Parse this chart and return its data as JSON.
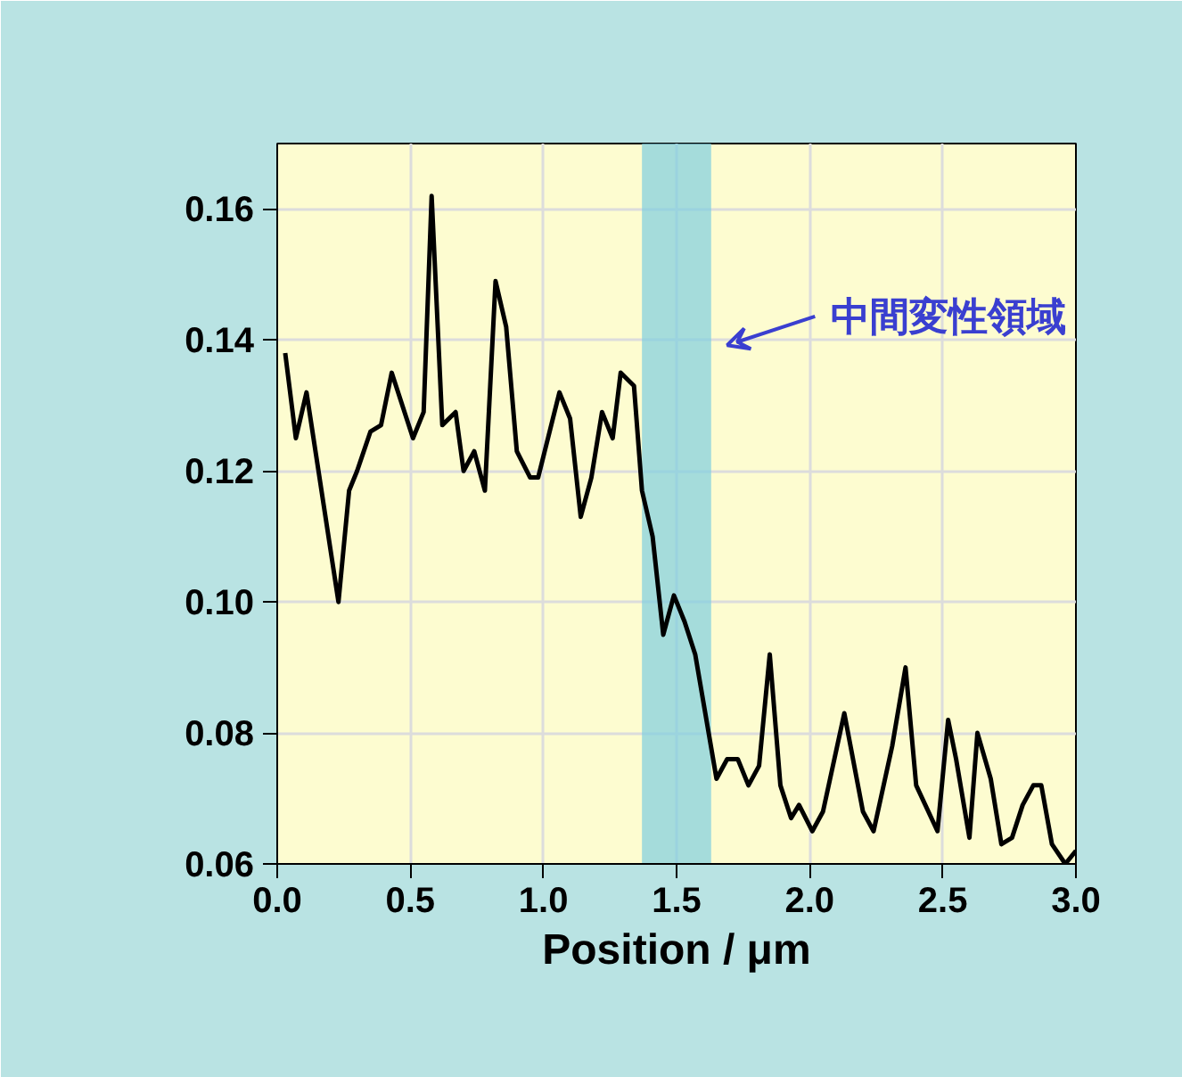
{
  "chart_data": {
    "type": "line",
    "xlabel": "Position / μm",
    "xlim": [
      0,
      3.0
    ],
    "ylim": [
      0.06,
      0.17
    ],
    "xticks": [
      {
        "value": 0,
        "label": "0.0"
      },
      {
        "value": 0.5,
        "label": "0.5"
      },
      {
        "value": 1.0,
        "label": "1.0"
      },
      {
        "value": 1.5,
        "label": "1.5"
      },
      {
        "value": 2.0,
        "label": "2.0"
      },
      {
        "value": 2.5,
        "label": "2.5"
      },
      {
        "value": 3.0,
        "label": "3.0"
      }
    ],
    "yticks": [
      {
        "value": 0.06,
        "label": "0.06"
      },
      {
        "value": 0.08,
        "label": "0.08"
      },
      {
        "value": 0.1,
        "label": "0.10"
      },
      {
        "value": 0.12,
        "label": "0.12"
      },
      {
        "value": 0.14,
        "label": "0.14"
      },
      {
        "value": 0.16,
        "label": "0.16"
      }
    ],
    "grid": true,
    "line_style": "solid",
    "bands": [
      {
        "axis": "x",
        "from": 1.37,
        "to": 1.63,
        "color": "#7fcfe0",
        "label": "中間変性領域"
      }
    ],
    "series": [
      {
        "color": "#000000",
        "x": [
          0.03,
          0.07,
          0.11,
          0.23,
          0.27,
          0.3,
          0.35,
          0.39,
          0.43,
          0.51,
          0.55,
          0.58,
          0.62,
          0.67,
          0.7,
          0.74,
          0.78,
          0.82,
          0.86,
          0.9,
          0.95,
          0.98,
          1.06,
          1.1,
          1.14,
          1.18,
          1.22,
          1.26,
          1.29,
          1.34,
          1.37,
          1.41,
          1.45,
          1.49,
          1.53,
          1.57,
          1.65,
          1.69,
          1.73,
          1.77,
          1.81,
          1.85,
          1.89,
          1.93,
          1.96,
          2.01,
          2.05,
          2.13,
          2.2,
          2.24,
          2.31,
          2.36,
          2.4,
          2.48,
          2.52,
          2.55,
          2.6,
          2.63,
          2.68,
          2.72,
          2.76,
          2.8,
          2.84,
          2.87,
          2.91,
          2.96,
          3.0
        ],
        "values": [
          0.138,
          0.125,
          0.132,
          0.1,
          0.117,
          0.12,
          0.126,
          0.127,
          0.135,
          0.125,
          0.129,
          0.162,
          0.127,
          0.129,
          0.12,
          0.123,
          0.117,
          0.149,
          0.142,
          0.123,
          0.119,
          0.119,
          0.132,
          0.128,
          0.113,
          0.119,
          0.129,
          0.125,
          0.135,
          0.133,
          0.117,
          0.11,
          0.095,
          0.101,
          0.097,
          0.092,
          0.073,
          0.076,
          0.076,
          0.072,
          0.075,
          0.092,
          0.072,
          0.067,
          0.069,
          0.065,
          0.068,
          0.083,
          0.068,
          0.065,
          0.078,
          0.09,
          0.072,
          0.065,
          0.082,
          0.076,
          0.064,
          0.08,
          0.073,
          0.063,
          0.064,
          0.069,
          0.072,
          0.072,
          0.063,
          0.06,
          0.062
        ]
      }
    ]
  }
}
